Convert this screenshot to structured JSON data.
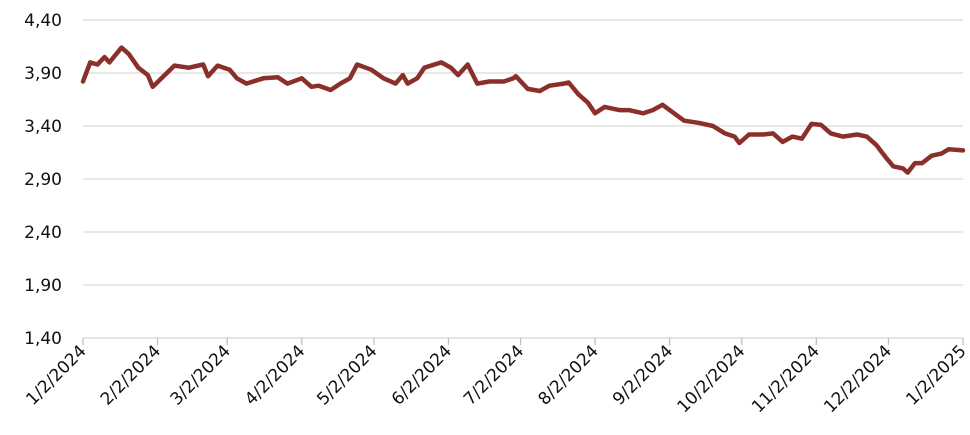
{
  "chart_data": {
    "type": "line",
    "color": "#8b2f2a",
    "grid": true,
    "ylim": [
      1.4,
      4.4
    ],
    "yticks": [
      {
        "value": 1.4,
        "label": "1,40"
      },
      {
        "value": 1.9,
        "label": "1,90"
      },
      {
        "value": 2.4,
        "label": "2,40"
      },
      {
        "value": 2.9,
        "label": "2,90"
      },
      {
        "value": 3.4,
        "label": "3,40"
      },
      {
        "value": 3.9,
        "label": "3,90"
      },
      {
        "value": 4.4,
        "label": "4,40"
      }
    ],
    "xlim": [
      "1/2/2024",
      "1/2/2025"
    ],
    "xticks": [
      "1/2/2024",
      "2/2/2024",
      "3/2/2024",
      "4/2/2024",
      "5/2/2024",
      "6/2/2024",
      "7/2/2024",
      "8/2/2024",
      "9/2/2024",
      "10/2/2024",
      "11/2/2024",
      "12/2/2024",
      "1/2/2025"
    ],
    "x": [
      "1/2/2024",
      "1/5/2024",
      "1/8/2024",
      "1/11/2024",
      "1/13/2024",
      "1/18/2024",
      "1/21/2024",
      "1/25/2024",
      "1/29/2024",
      "1/31/2024",
      "2/5/2024",
      "2/9/2024",
      "2/15/2024",
      "2/21/2024",
      "2/23/2024",
      "2/27/2024",
      "3/3/2024",
      "3/6/2024",
      "3/10/2024",
      "3/17/2024",
      "3/23/2024",
      "3/27/2024",
      "4/2/2024",
      "4/6/2024",
      "4/9/2024",
      "4/14/2024",
      "4/18/2024",
      "4/22/2024",
      "4/25/2024",
      "5/1/2024",
      "5/6/2024",
      "5/11/2024",
      "5/14/2024",
      "5/16/2024",
      "5/20/2024",
      "5/23/2024",
      "5/30/2024",
      "6/3/2024",
      "6/6/2024",
      "6/10/2024",
      "6/14/2024",
      "6/19/2024",
      "6/25/2024",
      "6/29/2024",
      "6/30/2024",
      "7/5/2024",
      "7/10/2024",
      "7/14/2024",
      "7/20/2024",
      "7/22/2024",
      "7/26/2024",
      "7/30/2024",
      "8/2/2024",
      "8/6/2024",
      "8/12/2024",
      "8/16/2024",
      "8/22/2024",
      "8/26/2024",
      "8/30/2024",
      "9/8/2024",
      "9/14/2024",
      "9/20/2024",
      "9/25/2024",
      "9/29/2024",
      "10/1/2024",
      "10/5/2024",
      "10/11/2024",
      "10/15/2024",
      "10/19/2024",
      "10/23/2024",
      "10/27/2024",
      "10/31/2024",
      "11/4/2024",
      "11/8/2024",
      "11/13/2024",
      "11/19/2024",
      "11/23/2024",
      "11/27/2024",
      "12/1/2024",
      "12/4/2024",
      "12/8/2024",
      "12/10/2024",
      "12/13/2024",
      "12/16/2024",
      "12/20/2024",
      "12/24/2024",
      "12/27/2024",
      "1/2/2025"
    ],
    "values": [
      3.82,
      4.0,
      3.98,
      4.05,
      4.0,
      4.14,
      4.08,
      3.95,
      3.88,
      3.77,
      3.88,
      3.97,
      3.95,
      3.98,
      3.87,
      3.97,
      3.93,
      3.85,
      3.8,
      3.85,
      3.86,
      3.8,
      3.85,
      3.77,
      3.78,
      3.74,
      3.8,
      3.85,
      3.98,
      3.93,
      3.85,
      3.8,
      3.88,
      3.8,
      3.85,
      3.95,
      4.0,
      3.95,
      3.88,
      3.98,
      3.8,
      3.82,
      3.82,
      3.85,
      3.87,
      3.75,
      3.73,
      3.78,
      3.8,
      3.81,
      3.7,
      3.62,
      3.52,
      3.58,
      3.55,
      3.55,
      3.52,
      3.55,
      3.6,
      3.45,
      3.43,
      3.4,
      3.33,
      3.3,
      3.24,
      3.32,
      3.32,
      3.33,
      3.25,
      3.3,
      3.28,
      3.42,
      3.41,
      3.33,
      3.3,
      3.32,
      3.3,
      3.22,
      3.1,
      3.02,
      3.0,
      2.96,
      3.05,
      3.05,
      3.12,
      3.14,
      3.18,
      3.17
    ]
  }
}
